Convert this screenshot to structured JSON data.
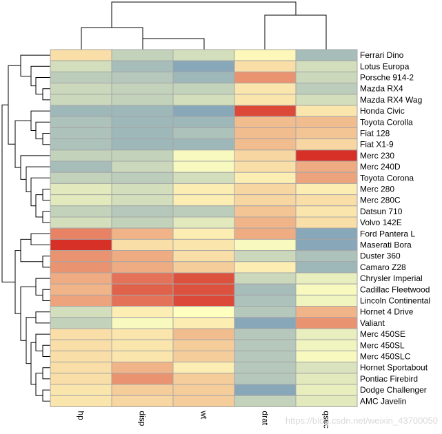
{
  "chart_data": {
    "type": "heatmap",
    "title": "",
    "columns": [
      "hp",
      "disp",
      "wt",
      "drat",
      "qsec"
    ],
    "rows": [
      "Ferrari Dino",
      "Lotus Europa",
      "Porsche 914-2",
      "Mazda RX4",
      "Mazda RX4 Wag",
      "Honda Civic",
      "Toyota Corolla",
      "Fiat 128",
      "Fiat X1-9",
      "Merc 230",
      "Merc 240D",
      "Toyota Corona",
      "Merc 280",
      "Merc 280C",
      "Datsun 710",
      "Volvo 142E",
      "Ford Pantera L",
      "Maserati Bora",
      "Duster 360",
      "Camaro Z28",
      "Chrysler Imperial",
      "Cadillac Fleetwood",
      "Lincoln Continental",
      "Hornet 4 Drive",
      "Valiant",
      "Merc 450SE",
      "Merc 450SL",
      "Merc 450SLC",
      "Hornet Sportabout",
      "Pontiac Firebird",
      "Dodge Challenger",
      "AMC Javelin"
    ],
    "values": [
      [
        0.4,
        -0.8,
        -0.6,
        0.1,
        -1.2
      ],
      [
        -0.6,
        -1.2,
        -1.6,
        0.4,
        -0.6
      ],
      [
        -0.9,
        -1.0,
        -1.3,
        1.3,
        -0.7
      ],
      [
        -0.7,
        -0.8,
        -0.8,
        0.3,
        -0.9
      ],
      [
        -0.7,
        -0.8,
        -0.6,
        0.3,
        -0.6
      ],
      [
        -1.3,
        -1.3,
        -1.6,
        2.2,
        0.3
      ],
      [
        -1.1,
        -1.3,
        -1.3,
        0.8,
        0.8
      ],
      [
        -1.1,
        -1.3,
        -1.1,
        0.8,
        0.7
      ],
      [
        -1.1,
        -1.3,
        -1.3,
        0.8,
        0.5
      ],
      [
        -0.8,
        -0.8,
        -0.1,
        0.5,
        2.5
      ],
      [
        -1.2,
        -0.7,
        -0.1,
        0.4,
        1.0
      ],
      [
        -0.8,
        -0.9,
        -0.6,
        0.2,
        1.1
      ],
      [
        -0.4,
        -0.6,
        0.2,
        0.5,
        0.2
      ],
      [
        -0.4,
        -0.6,
        0.2,
        0.5,
        0.4
      ],
      [
        -0.8,
        -1.0,
        -0.9,
        0.7,
        0.3
      ],
      [
        -0.6,
        -0.8,
        -0.4,
        0.9,
        0.4
      ],
      [
        1.5,
        0.9,
        0.2,
        1.0,
        -1.6
      ],
      [
        2.5,
        0.4,
        0.3,
        -0.1,
        -1.6
      ],
      [
        1.3,
        1.0,
        0.4,
        -0.7,
        -1.1
      ],
      [
        1.3,
        1.0,
        0.6,
        0.2,
        -1.3
      ],
      [
        1.0,
        1.7,
        2.1,
        -0.7,
        -0.3
      ],
      [
        0.9,
        1.9,
        2.1,
        -1.2,
        -0.1
      ],
      [
        1.1,
        1.7,
        2.2,
        -1.1,
        -0.2
      ],
      [
        -0.6,
        0.2,
        -0.0,
        -1.0,
        0.9
      ],
      [
        -0.8,
        -0.1,
        0.2,
        -1.6,
        1.3
      ],
      [
        0.4,
        0.3,
        0.8,
        -1.0,
        -0.3
      ],
      [
        0.4,
        0.3,
        0.6,
        -1.0,
        -0.2
      ],
      [
        0.4,
        0.3,
        0.6,
        -1.0,
        -0.1
      ],
      [
        0.4,
        0.9,
        0.2,
        -1.0,
        -0.5
      ],
      [
        0.4,
        1.3,
        0.6,
        -1.0,
        -0.4
      ],
      [
        0.3,
        0.6,
        0.6,
        -1.6,
        -0.3
      ],
      [
        0.3,
        0.5,
        0.6,
        -0.8,
        -0.4
      ]
    ],
    "color_scale": {
      "min": -2.5,
      "max": 2.5,
      "low": "#4575b4",
      "mid": "#ffffbf",
      "high": "#d73027"
    },
    "cell_border": "#a6a6a6",
    "dendrogram_color": "#000000",
    "legend": "none"
  },
  "watermark": "https://blog.csdn.net/weixin_43700050"
}
